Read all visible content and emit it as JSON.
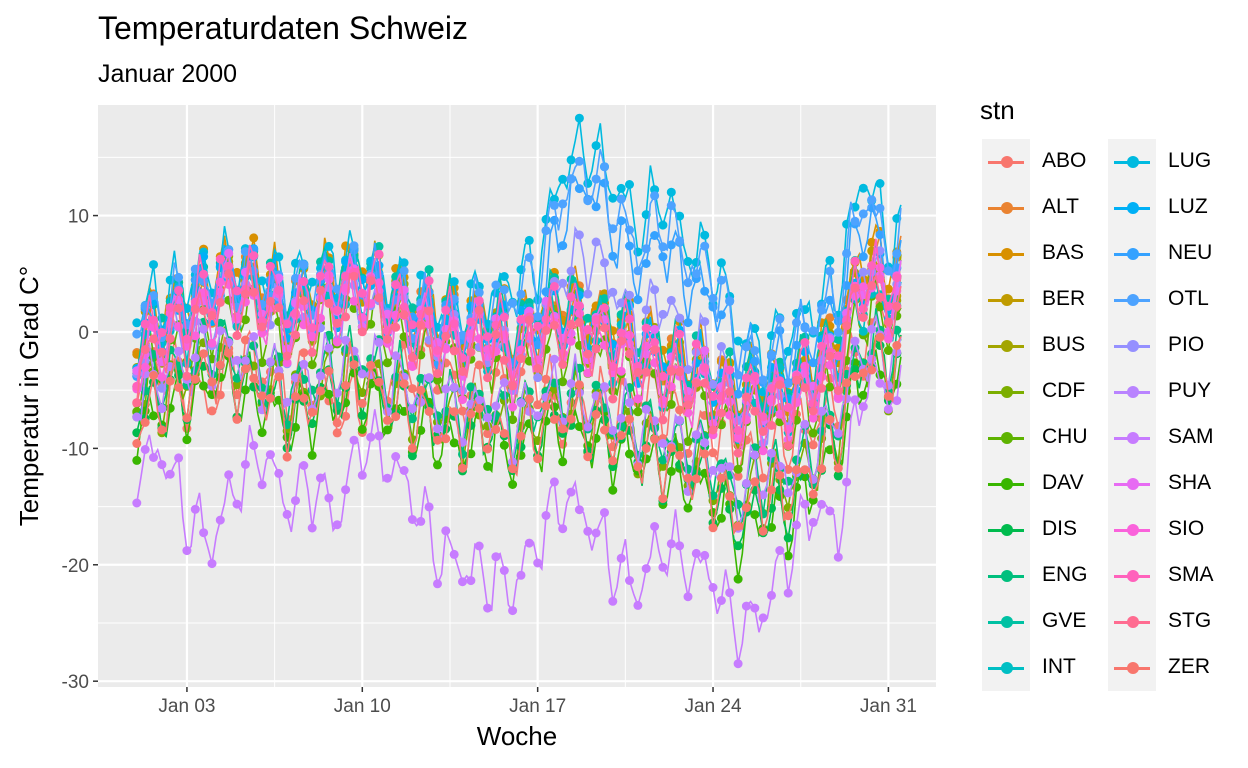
{
  "chart_data": {
    "type": "line",
    "title": "Temperaturdaten Schweiz",
    "subtitle": "Januar 2000",
    "xlabel": "Woche",
    "ylabel": "Temperatur in Grad C°",
    "x_range": [
      "2000-01-01",
      "2000-01-31"
    ],
    "ylim": [
      -30.5,
      19.5
    ],
    "x_ticks": [
      "Jan 03",
      "Jan 10",
      "Jan 17",
      "Jan 24",
      "Jan 31"
    ],
    "y_ticks": [
      "-30",
      "-20",
      "-10",
      "0",
      "10"
    ],
    "grid": true,
    "legend_title": "stn",
    "legend_position": "right",
    "markers": "points-with-lines",
    "series": [
      {
        "name": "ABO",
        "color": "#F8766D",
        "profile": [
          -4,
          -3,
          -5,
          -6,
          -2,
          -3,
          -5,
          -4,
          -7,
          -6,
          -4,
          -3,
          -2,
          -6,
          -5,
          -4,
          -3,
          -8,
          -6,
          -7,
          -5,
          -6,
          -9,
          -8,
          -10,
          -11,
          -9,
          -8,
          -6,
          -1,
          2
        ]
      },
      {
        "name": "ALT",
        "color": "#EA8331",
        "profile": [
          -1,
          1,
          2,
          3,
          5,
          4,
          2,
          3,
          4,
          5,
          3,
          2,
          1,
          0,
          1,
          -1,
          1,
          2,
          1,
          0,
          -1,
          -2,
          -3,
          -4,
          -6,
          -5,
          -5,
          -3,
          -1,
          6,
          5
        ]
      },
      {
        "name": "BAS",
        "color": "#D89000",
        "profile": [
          0,
          2,
          3,
          5,
          6,
          5,
          3,
          4,
          5,
          6,
          4,
          3,
          2,
          1,
          2,
          0,
          2,
          3,
          2,
          1,
          0,
          -1,
          -2,
          -3,
          -5,
          -4,
          -4,
          -2,
          0,
          7,
          6
        ]
      },
      {
        "name": "BER",
        "color": "#C09B00",
        "profile": [
          -1,
          1,
          2,
          4,
          5,
          4,
          2,
          3,
          4,
          5,
          3,
          2,
          1,
          0,
          1,
          -1,
          1,
          2,
          1,
          0,
          -1,
          -2,
          -3,
          -4,
          -6,
          -5,
          -5,
          -3,
          -1,
          5,
          4
        ]
      },
      {
        "name": "BUS",
        "color": "#A3A500",
        "profile": [
          -2,
          0,
          1,
          3,
          4,
          3,
          1,
          2,
          3,
          4,
          2,
          1,
          0,
          -1,
          0,
          -2,
          0,
          1,
          0,
          -1,
          -2,
          -3,
          -4,
          -5,
          -7,
          -6,
          -6,
          -4,
          -2,
          4,
          3
        ]
      },
      {
        "name": "CDF",
        "color": "#7CAE00",
        "profile": [
          -6,
          -5,
          -4,
          -2,
          -3,
          -4,
          -6,
          -5,
          -4,
          -3,
          -5,
          -6,
          -7,
          -8,
          -7,
          -9,
          -7,
          -6,
          -7,
          -8,
          -9,
          -10,
          -11,
          -12,
          -15,
          -13,
          -13,
          -11,
          -8,
          -2,
          -3
        ]
      },
      {
        "name": "CHU",
        "color": "#5EB300",
        "profile": [
          -4,
          -2,
          -1,
          1,
          2,
          1,
          -1,
          0,
          1,
          2,
          0,
          -1,
          -2,
          -3,
          -2,
          -4,
          -2,
          -1,
          -2,
          -3,
          -4,
          -5,
          -6,
          -7,
          -9,
          -8,
          -8,
          -6,
          -4,
          2,
          1
        ]
      },
      {
        "name": "DAV",
        "color": "#39B600",
        "profile": [
          -8,
          -7,
          -6,
          -4,
          -5,
          -6,
          -8,
          -7,
          -6,
          -5,
          -7,
          -8,
          -9,
          -10,
          -9,
          -11,
          -9,
          -8,
          -9,
          -10,
          -11,
          -12,
          -13,
          -14,
          -18,
          -16,
          -16,
          -13,
          -10,
          -3,
          -4
        ]
      },
      {
        "name": "DIS",
        "color": "#00BB4E",
        "profile": [
          -7,
          -6,
          -5,
          -3,
          -4,
          -5,
          -7,
          -6,
          -5,
          -4,
          -6,
          -7,
          -8,
          -9,
          -8,
          -10,
          -8,
          -7,
          -8,
          -9,
          -10,
          -11,
          -12,
          -13,
          -17,
          -15,
          -15,
          -12,
          -9,
          -2,
          -3
        ]
      },
      {
        "name": "ENG",
        "color": "#00BF7D",
        "profile": [
          -5,
          -4,
          -3,
          -1,
          -2,
          -3,
          -5,
          -4,
          -3,
          -2,
          -4,
          -5,
          -6,
          -7,
          -6,
          -8,
          -6,
          -5,
          -6,
          -7,
          -8,
          -9,
          -10,
          -11,
          -14,
          -12,
          -12,
          -10,
          -7,
          -1,
          -2
        ]
      },
      {
        "name": "GVE",
        "color": "#00C1A3",
        "profile": [
          0,
          2,
          3,
          4,
          5,
          4,
          3,
          4,
          5,
          6,
          4,
          3,
          2,
          1,
          2,
          0,
          2,
          3,
          2,
          1,
          0,
          -1,
          -2,
          -3,
          -5,
          -4,
          -4,
          -2,
          0,
          5,
          4
        ]
      },
      {
        "name": "INT",
        "color": "#00BFC4",
        "profile": [
          -2,
          0,
          1,
          3,
          4,
          3,
          1,
          2,
          3,
          4,
          2,
          1,
          0,
          -1,
          0,
          -2,
          0,
          1,
          0,
          -1,
          -2,
          -3,
          -4,
          -5,
          -7,
          -6,
          -6,
          -4,
          -2,
          3,
          2
        ]
      },
      {
        "name": "LUG",
        "color": "#00BAE0",
        "profile": [
          2,
          3,
          4,
          5,
          6,
          5,
          4,
          5,
          6,
          5,
          4,
          3,
          2,
          2,
          3,
          4,
          6,
          14,
          16,
          13,
          9,
          12,
          7,
          6,
          0,
          -2,
          0,
          2,
          4,
          14,
          8
        ]
      },
      {
        "name": "LUZ",
        "color": "#00B0F6",
        "profile": [
          -1,
          1,
          2,
          4,
          5,
          4,
          2,
          3,
          4,
          5,
          3,
          2,
          1,
          0,
          1,
          -1,
          1,
          2,
          1,
          0,
          -1,
          -2,
          -3,
          -4,
          -6,
          -5,
          -5,
          -3,
          -1,
          5,
          4
        ]
      },
      {
        "name": "NEU",
        "color": "#35A2FF",
        "profile": [
          -1,
          1,
          2,
          4,
          5,
          4,
          2,
          3,
          4,
          5,
          3,
          2,
          1,
          0,
          1,
          -1,
          1,
          10,
          13,
          9,
          5,
          8,
          4,
          3,
          -2,
          -3,
          -2,
          0,
          2,
          10,
          6
        ]
      },
      {
        "name": "OTL",
        "color": "#4DA3FF",
        "profile": [
          1,
          2,
          3,
          4,
          5,
          4,
          3,
          4,
          5,
          4,
          3,
          2,
          1,
          1,
          2,
          3,
          5,
          12,
          14,
          11,
          7,
          10,
          6,
          5,
          -1,
          -3,
          -1,
          1,
          3,
          12,
          7
        ]
      },
      {
        "name": "PIO",
        "color": "#9590FF",
        "profile": [
          -3,
          -1,
          0,
          2,
          3,
          2,
          0,
          1,
          2,
          3,
          1,
          0,
          -1,
          -2,
          -1,
          -3,
          -1,
          5,
          7,
          4,
          0,
          3,
          -1,
          -2,
          -6,
          -7,
          -6,
          -4,
          -2,
          6,
          3
        ]
      },
      {
        "name": "PUY",
        "color": "#B983FF",
        "profile": [
          -5,
          -4,
          -3,
          -1,
          -2,
          -3,
          -5,
          -4,
          -3,
          -2,
          -4,
          -5,
          -6,
          -7,
          -6,
          -8,
          -6,
          -5,
          -6,
          -7,
          -8,
          -9,
          -10,
          -11,
          -14,
          -12,
          -12,
          -10,
          -7,
          -1,
          -2
        ]
      },
      {
        "name": "SAM",
        "color": "#C77CFF",
        "profile": [
          -12,
          -10,
          -16,
          -18,
          -13,
          -10,
          -15,
          -13,
          -16,
          -9,
          -11,
          -14,
          -19,
          -20,
          -21,
          -22,
          -18,
          -14,
          -16,
          -20,
          -22,
          -18,
          -20,
          -21,
          -26,
          -24,
          -19,
          -15,
          -17,
          -4,
          -5
        ]
      },
      {
        "name": "SHA",
        "color": "#E76BF3",
        "profile": [
          -2,
          0,
          1,
          3,
          4,
          3,
          1,
          2,
          3,
          4,
          2,
          1,
          0,
          -1,
          0,
          -2,
          0,
          1,
          0,
          -1,
          -2,
          -3,
          -4,
          -5,
          -7,
          -6,
          -6,
          -4,
          -2,
          4,
          3
        ]
      },
      {
        "name": "SIO",
        "color": "#FA62DB",
        "profile": [
          -3,
          -1,
          0,
          2,
          3,
          2,
          0,
          1,
          2,
          3,
          1,
          0,
          -1,
          -2,
          -1,
          -3,
          -1,
          0,
          -1,
          -2,
          -3,
          -4,
          -5,
          -6,
          -8,
          -7,
          -7,
          -5,
          -3,
          5,
          3
        ]
      },
      {
        "name": "SMA",
        "color": "#FF62BC",
        "profile": [
          -1,
          1,
          2,
          4,
          5,
          4,
          2,
          3,
          4,
          5,
          3,
          2,
          1,
          0,
          1,
          -1,
          1,
          2,
          1,
          0,
          -1,
          -2,
          -3,
          -4,
          -6,
          -5,
          -5,
          -3,
          -1,
          5,
          4
        ]
      },
      {
        "name": "STG",
        "color": "#FF6C91",
        "profile": [
          -3,
          -1,
          0,
          2,
          3,
          2,
          0,
          1,
          2,
          3,
          1,
          0,
          -1,
          -2,
          -1,
          -3,
          -1,
          0,
          -1,
          -2,
          -3,
          -4,
          -5,
          -6,
          -8,
          -7,
          -7,
          -5,
          -3,
          4,
          2
        ]
      },
      {
        "name": "ZER",
        "color": "#F8766D",
        "profile": [
          -8,
          -6,
          -5,
          -3,
          -4,
          -5,
          -7,
          -6,
          -5,
          -4,
          -6,
          -7,
          -8,
          -9,
          -8,
          -10,
          -8,
          -7,
          -8,
          -9,
          -10,
          -11,
          -12,
          -13,
          -16,
          -14,
          -14,
          -12,
          -9,
          -2,
          -3
        ]
      }
    ]
  }
}
